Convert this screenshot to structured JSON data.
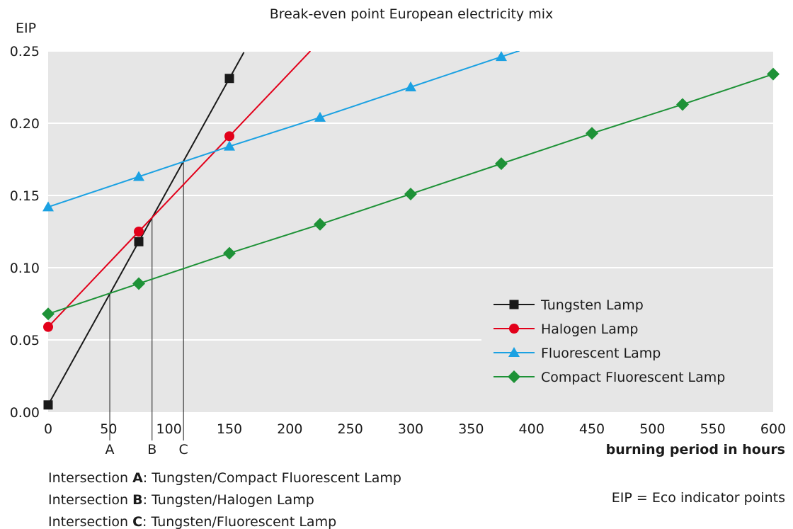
{
  "chart_data": {
    "type": "line",
    "title": "Break-even point European electricity mix",
    "ylabel": "EIP",
    "xlabel": "burning period in hours",
    "xlim": [
      0,
      600
    ],
    "ylim": [
      0,
      0.25
    ],
    "x_ticks": [
      0,
      50,
      100,
      150,
      200,
      250,
      300,
      350,
      400,
      450,
      500,
      550,
      600
    ],
    "y_ticks": [
      "0.00",
      "0.05",
      "0.10",
      "0.15",
      "0.20",
      "0.25"
    ],
    "grid": "horizontal",
    "legend_position": "right",
    "series": [
      {
        "name": "Tungsten Lamp",
        "color": "#1a1a1a",
        "marker": "square",
        "x": [
          0,
          75,
          150
        ],
        "y": [
          0.005,
          0.118,
          0.231
        ],
        "line_to_x": 162
      },
      {
        "name": "Halogen Lamp",
        "color": "#e2001a",
        "marker": "circle",
        "x": [
          0,
          75,
          150
        ],
        "y": [
          0.059,
          0.125,
          0.191
        ],
        "line_to_x": 217
      },
      {
        "name": "Fluorescent Lamp",
        "color": "#1ba1e2",
        "marker": "triangle",
        "x": [
          0,
          75,
          150,
          225,
          300,
          375
        ],
        "y": [
          0.142,
          0.163,
          0.184,
          0.204,
          0.225,
          0.246
        ],
        "line_to_x": 390
      },
      {
        "name": "Compact Fluorescent Lamp",
        "color": "#1e9237",
        "marker": "diamond",
        "x": [
          0,
          75,
          150,
          225,
          300,
          375,
          450,
          525,
          600
        ],
        "y": [
          0.068,
          0.089,
          0.11,
          0.13,
          0.151,
          0.172,
          0.193,
          0.213,
          0.234
        ]
      }
    ],
    "intersections": [
      {
        "label": "A",
        "x": 51,
        "y": 0.082
      },
      {
        "label": "B",
        "x": 86,
        "y": 0.134
      },
      {
        "label": "C",
        "x": 112,
        "y": 0.173
      }
    ]
  },
  "footnotes": [
    {
      "prefix": "Intersection ",
      "letter": "A",
      "text": ":  Tungsten/Compact Fluorescent Lamp"
    },
    {
      "prefix": "Intersection ",
      "letter": "B",
      "text": ":  Tungsten/Halogen Lamp"
    },
    {
      "prefix": "Intersection ",
      "letter": "C",
      "text": ":  Tungsten/Fluorescent Lamp"
    }
  ],
  "eip_note": "EIP = Eco indicator points"
}
